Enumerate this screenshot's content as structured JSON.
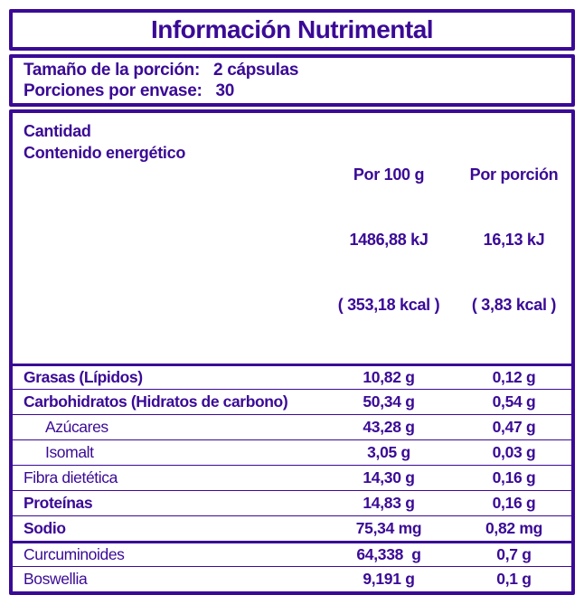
{
  "colors": {
    "purple": "#3A0A96",
    "background": "#FFFFFF"
  },
  "title": "Información Nutrimental",
  "serving": {
    "size_label": "Tamaño de la porción:",
    "size_value": "2 cápsulas",
    "per_container_label": "Porciones por envase:",
    "per_container_value": "30"
  },
  "table": {
    "header": {
      "amount_label": "Cantidad",
      "energy_label": "Contenido energético",
      "per100": {
        "title": "Por 100 g",
        "kj": "1486,88 kJ",
        "kcal": "( 353,18 kcal )"
      },
      "portion": {
        "title": "Por porción",
        "kj": "16,13 kJ",
        "kcal": "( 3,83 kcal )"
      }
    },
    "rows": [
      {
        "label": "Grasas (Lípidos)",
        "per100": "10,82 g",
        "portion": "0,12 g",
        "bold": true,
        "indent": false,
        "sep": "thick"
      },
      {
        "label": "Carbohidratos (Hidratos de carbono)",
        "per100": "50,34 g",
        "portion": "0,54 g",
        "bold": true,
        "indent": false,
        "sep": "thin"
      },
      {
        "label": "Azúcares",
        "per100": "43,28 g",
        "portion": "0,47 g",
        "bold": false,
        "indent": true,
        "sep": "thin"
      },
      {
        "label": "Isomalt",
        "per100": "3,05 g",
        "portion": "0,03 g",
        "bold": false,
        "indent": true,
        "sep": "thin"
      },
      {
        "label": "Fibra dietética",
        "per100": "14,30 g",
        "portion": "0,16 g",
        "bold": false,
        "indent": false,
        "sep": "thin"
      },
      {
        "label": "Proteínas",
        "per100": "14,83 g",
        "portion": "0,16 g",
        "bold": true,
        "indent": false,
        "sep": "thin"
      },
      {
        "label": "Sodio",
        "per100": "75,34 mg",
        "portion": "0,82 mg",
        "bold": true,
        "indent": false,
        "sep": "thin"
      },
      {
        "label": "Curcuminoides",
        "per100": "64,338  g",
        "portion": "0,7 g",
        "bold": false,
        "indent": false,
        "sep": "thick"
      },
      {
        "label": "Boswellia",
        "per100": "9,191 g",
        "portion": "0,1 g",
        "bold": false,
        "indent": false,
        "sep": "thin"
      }
    ]
  }
}
